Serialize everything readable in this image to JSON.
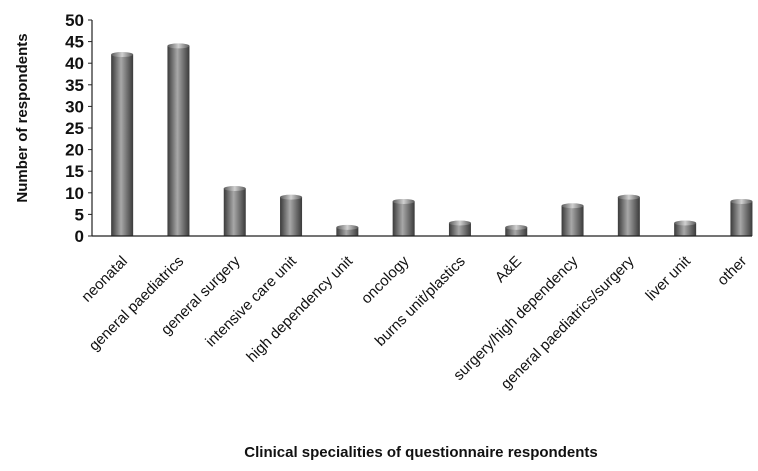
{
  "chart_data": {
    "type": "bar",
    "title": "",
    "xlabel": "Clinical specialities  of questionnaire respondents",
    "ylabel": "Number of respondents",
    "categories": [
      "neonatal",
      "general paediatrics",
      "general surgery",
      "intensive care unit",
      "high dependency unit",
      "oncology",
      "burns unit/plastics",
      "A&E",
      "surgery/high dependency",
      "general paediatrics/surgery",
      "liver unit",
      "other"
    ],
    "values": [
      42,
      44,
      11,
      9,
      2,
      8,
      3,
      2,
      7,
      9,
      3,
      8
    ],
    "ylim": [
      0,
      50
    ],
    "yticks": [
      0,
      5,
      10,
      15,
      20,
      25,
      30,
      35,
      40,
      45,
      50
    ],
    "grid": false,
    "legend": "none",
    "colors": {
      "bar_light": "#a8a8a8",
      "bar_mid": "#6e6e6e",
      "bar_dark": "#3a3a3a",
      "axis": "#222222"
    }
  }
}
